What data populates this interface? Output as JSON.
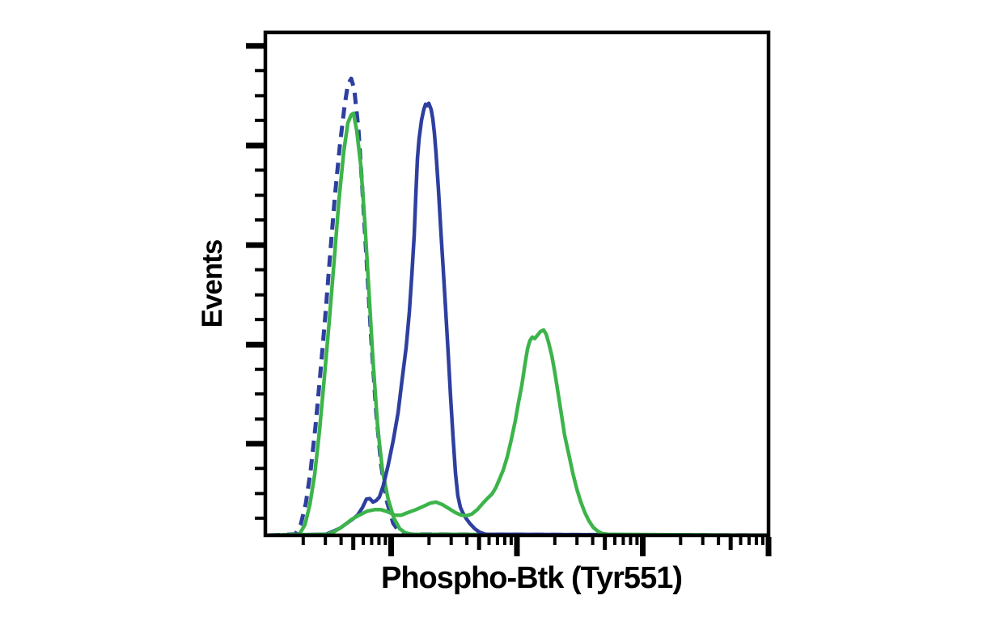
{
  "figure": {
    "type": "flow-cytometry-overlay-histogram",
    "background": "#ffffff",
    "legend": "none",
    "title": ""
  },
  "chart_data": {
    "type": "line",
    "subtype": "flow-cytometry-histogram-overlay",
    "title": "",
    "xlabel": "Phospho-Btk (Tyr551)",
    "ylabel": "Events",
    "grid": "off",
    "legend_position": "none",
    "colors": {
      "blue": "#2e3f9f",
      "green": "#3cb44a",
      "axis": "#000000",
      "background": "#ffffff"
    },
    "x_axis": {
      "scale": "log10",
      "decades": 4,
      "major_decades": [
        1,
        2,
        3,
        4
      ],
      "medium_multiple": 5,
      "minor_multiples": [
        2,
        3,
        4,
        6,
        7,
        8,
        9
      ],
      "tick_labels": []
    },
    "y_axis": {
      "scale": "linear",
      "range": [
        0,
        1
      ],
      "major_positions": [
        0.182,
        0.379,
        0.577,
        0.775,
        0.973
      ],
      "minor_positions": [
        0.034,
        0.083,
        0.133,
        0.231,
        0.281,
        0.33,
        0.429,
        0.478,
        0.528,
        0.627,
        0.676,
        0.726,
        0.825,
        0.874,
        0.924
      ],
      "tick_labels": []
    },
    "series": [
      {
        "name": "blue-dashed-narrow-left-peak",
        "color": "#2e3f9f",
        "dashed": true,
        "peak": {
          "x": 0.68,
          "y": 0.91
        },
        "points": [
          [
            0.026,
            0
          ],
          [
            0.238,
            0.002
          ],
          [
            0.283,
            0.023
          ],
          [
            0.322,
            0.064
          ],
          [
            0.36,
            0.129
          ],
          [
            0.399,
            0.217
          ],
          [
            0.437,
            0.322
          ],
          [
            0.476,
            0.434
          ],
          [
            0.514,
            0.555
          ],
          [
            0.553,
            0.675
          ],
          [
            0.592,
            0.775
          ],
          [
            0.63,
            0.855
          ],
          [
            0.656,
            0.896
          ],
          [
            0.682,
            0.908
          ],
          [
            0.707,
            0.887
          ],
          [
            0.74,
            0.807
          ],
          [
            0.772,
            0.686
          ],
          [
            0.804,
            0.55
          ],
          [
            0.842,
            0.389
          ],
          [
            0.881,
            0.244
          ],
          [
            0.92,
            0.14
          ],
          [
            0.965,
            0.068
          ],
          [
            1.016,
            0.024
          ],
          [
            1.068,
            0.006
          ],
          [
            1.119,
            0.002
          ],
          [
            3.987,
            0
          ]
        ]
      },
      {
        "name": "green-narrow-left-peak",
        "color": "#3cb44a",
        "dashed": false,
        "peak": {
          "x": 0.7,
          "y": 0.84
        },
        "points": [
          [
            0.026,
            0
          ],
          [
            0.27,
            0.002
          ],
          [
            0.315,
            0.021
          ],
          [
            0.354,
            0.061
          ],
          [
            0.392,
            0.121
          ],
          [
            0.431,
            0.209
          ],
          [
            0.469,
            0.313
          ],
          [
            0.508,
            0.426
          ],
          [
            0.547,
            0.547
          ],
          [
            0.585,
            0.667
          ],
          [
            0.624,
            0.764
          ],
          [
            0.656,
            0.82
          ],
          [
            0.682,
            0.836
          ],
          [
            0.701,
            0.839
          ],
          [
            0.727,
            0.804
          ],
          [
            0.759,
            0.735
          ],
          [
            0.791,
            0.622
          ],
          [
            0.823,
            0.486
          ],
          [
            0.855,
            0.349
          ],
          [
            0.894,
            0.212
          ],
          [
            0.932,
            0.127
          ],
          [
            0.977,
            0.071
          ],
          [
            1.022,
            0.034
          ],
          [
            1.068,
            0.013
          ],
          [
            1.113,
            0.005
          ],
          [
            1.164,
            0.002
          ],
          [
            3.987,
            0
          ]
        ]
      },
      {
        "name": "blue-solid-middle-peak",
        "color": "#2e3f9f",
        "dashed": false,
        "peak": {
          "x": 1.29,
          "y": 0.86
        },
        "points": [
          [
            0.026,
            0
          ],
          [
            0.482,
            0.002
          ],
          [
            0.54,
            0.008
          ],
          [
            0.592,
            0.014
          ],
          [
            0.643,
            0.023
          ],
          [
            0.688,
            0.031
          ],
          [
            0.733,
            0.04
          ],
          [
            0.772,
            0.055
          ],
          [
            0.804,
            0.072
          ],
          [
            0.83,
            0.073
          ],
          [
            0.855,
            0.066
          ],
          [
            0.881,
            0.069
          ],
          [
            0.907,
            0.076
          ],
          [
            0.939,
            0.1
          ],
          [
            0.977,
            0.14
          ],
          [
            1.016,
            0.188
          ],
          [
            1.055,
            0.244
          ],
          [
            1.087,
            0.309
          ],
          [
            1.119,
            0.373
          ],
          [
            1.145,
            0.444
          ],
          [
            1.164,
            0.516
          ],
          [
            1.183,
            0.596
          ],
          [
            1.196,
            0.677
          ],
          [
            1.209,
            0.749
          ],
          [
            1.222,
            0.788
          ],
          [
            1.241,
            0.825
          ],
          [
            1.26,
            0.847
          ],
          [
            1.273,
            0.857
          ],
          [
            1.286,
            0.854
          ],
          [
            1.299,
            0.859
          ],
          [
            1.318,
            0.847
          ],
          [
            1.331,
            0.828
          ],
          [
            1.344,
            0.799
          ],
          [
            1.357,
            0.759
          ],
          [
            1.376,
            0.687
          ],
          [
            1.395,
            0.606
          ],
          [
            1.415,
            0.526
          ],
          [
            1.434,
            0.445
          ],
          [
            1.453,
            0.365
          ],
          [
            1.472,
            0.277
          ],
          [
            1.492,
            0.196
          ],
          [
            1.511,
            0.124
          ],
          [
            1.53,
            0.079
          ],
          [
            1.55,
            0.056
          ],
          [
            1.569,
            0.045
          ],
          [
            1.595,
            0.034
          ],
          [
            1.627,
            0.023
          ],
          [
            1.665,
            0.013
          ],
          [
            1.704,
            0.006
          ],
          [
            1.749,
            0.002
          ],
          [
            3.987,
            0
          ]
        ]
      },
      {
        "name": "green-broad-right-peak",
        "color": "#3cb44a",
        "dashed": false,
        "peak": {
          "x": 2.21,
          "y": 0.41
        },
        "points": [
          [
            0.026,
            0
          ],
          [
            0.495,
            0.002
          ],
          [
            0.553,
            0.008
          ],
          [
            0.617,
            0.018
          ],
          [
            0.682,
            0.031
          ],
          [
            0.746,
            0.04
          ],
          [
            0.81,
            0.048
          ],
          [
            0.868,
            0.051
          ],
          [
            0.92,
            0.051
          ],
          [
            0.971,
            0.047
          ],
          [
            1.029,
            0.04
          ],
          [
            1.08,
            0.04
          ],
          [
            1.132,
            0.045
          ],
          [
            1.196,
            0.051
          ],
          [
            1.26,
            0.058
          ],
          [
            1.312,
            0.064
          ],
          [
            1.357,
            0.066
          ],
          [
            1.408,
            0.061
          ],
          [
            1.46,
            0.053
          ],
          [
            1.511,
            0.045
          ],
          [
            1.556,
            0.04
          ],
          [
            1.601,
            0.039
          ],
          [
            1.64,
            0.042
          ],
          [
            1.685,
            0.051
          ],
          [
            1.73,
            0.064
          ],
          [
            1.768,
            0.074
          ],
          [
            1.801,
            0.082
          ],
          [
            1.833,
            0.095
          ],
          [
            1.865,
            0.114
          ],
          [
            1.891,
            0.13
          ],
          [
            1.923,
            0.156
          ],
          [
            1.955,
            0.19
          ],
          [
            1.987,
            0.228
          ],
          [
            2.013,
            0.265
          ],
          [
            2.039,
            0.299
          ],
          [
            2.064,
            0.341
          ],
          [
            2.084,
            0.371
          ],
          [
            2.103,
            0.387
          ],
          [
            2.122,
            0.394
          ],
          [
            2.141,
            0.391
          ],
          [
            2.161,
            0.397
          ],
          [
            2.186,
            0.405
          ],
          [
            2.212,
            0.408
          ],
          [
            2.232,
            0.4
          ],
          [
            2.251,
            0.384
          ],
          [
            2.277,
            0.357
          ],
          [
            2.302,
            0.322
          ],
          [
            2.328,
            0.281
          ],
          [
            2.354,
            0.24
          ],
          [
            2.379,
            0.199
          ],
          [
            2.412,
            0.161
          ],
          [
            2.444,
            0.124
          ],
          [
            2.476,
            0.092
          ],
          [
            2.508,
            0.066
          ],
          [
            2.54,
            0.045
          ],
          [
            2.572,
            0.029
          ],
          [
            2.605,
            0.016
          ],
          [
            2.643,
            0.008
          ],
          [
            2.682,
            0.003
          ],
          [
            2.727,
            0.002
          ],
          [
            3.987,
            0
          ]
        ]
      }
    ]
  }
}
